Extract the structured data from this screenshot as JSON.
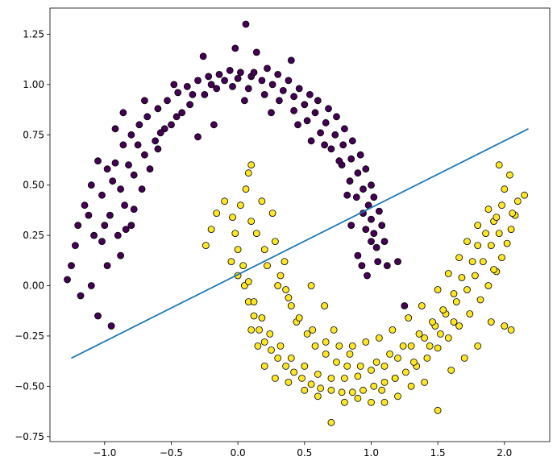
{
  "chart_data": {
    "type": "scatter",
    "title": "",
    "xlabel": "",
    "ylabel": "",
    "xlim": [
      -1.41,
      2.34
    ],
    "ylim": [
      -0.775,
      1.38
    ],
    "grid": false,
    "x_ticks": [
      -1.0,
      -0.5,
      0.0,
      0.5,
      1.0,
      1.5,
      2.0
    ],
    "x_tick_labels": [
      "−1.0",
      "−0.5",
      "0.0",
      "0.5",
      "1.0",
      "1.5",
      "2.0"
    ],
    "y_ticks": [
      -0.75,
      -0.5,
      -0.25,
      0.0,
      0.25,
      0.5,
      0.75,
      1.0,
      1.25
    ],
    "y_tick_labels": [
      "−0.75",
      "−0.50",
      "−0.25",
      "0.00",
      "0.25",
      "0.50",
      "0.75",
      "1.00",
      "1.25"
    ],
    "colors": {
      "class_0": "#440154",
      "class_1": "#fde725",
      "line": "#1f77b4",
      "point_edge": "#000000"
    },
    "series": [
      {
        "class": 0,
        "points": [
          [
            -1.05,
            0.62
          ],
          [
            -0.98,
            0.58
          ],
          [
            -0.92,
            0.61
          ],
          [
            -0.86,
            0.7
          ],
          [
            -0.8,
            0.75
          ],
          [
            -0.74,
            0.8
          ],
          [
            -0.68,
            0.84
          ],
          [
            -0.6,
            0.88
          ],
          [
            -0.53,
            0.92
          ],
          [
            -0.45,
            0.96
          ],
          [
            -0.38,
            0.99
          ],
          [
            -0.3,
            1.02
          ],
          [
            -0.22,
            1.04
          ],
          [
            -0.14,
            1.05
          ],
          [
            -0.06,
            1.07
          ],
          [
            0.02,
            1.06
          ],
          [
            0.1,
            1.04
          ],
          [
            0.18,
            1.02
          ],
          [
            0.26,
            1.0
          ],
          [
            0.34,
            0.97
          ],
          [
            0.42,
            0.94
          ],
          [
            0.5,
            0.9
          ],
          [
            0.58,
            0.86
          ],
          [
            0.66,
            0.81
          ],
          [
            0.73,
            0.75
          ],
          [
            0.79,
            0.7
          ],
          [
            0.85,
            0.63
          ],
          [
            0.9,
            0.56
          ],
          [
            0.94,
            0.48
          ],
          [
            0.98,
            0.4
          ],
          [
            1.0,
            0.33
          ],
          [
            1.02,
            0.26
          ],
          [
            1.04,
            0.19
          ],
          [
            1.05,
            0.12
          ],
          [
            -1.1,
            0.5
          ],
          [
            -1.15,
            0.4
          ],
          [
            -1.2,
            0.3
          ],
          [
            -1.22,
            0.2
          ],
          [
            -1.25,
            0.1
          ],
          [
            -1.28,
            0.03
          ],
          [
            -1.18,
            -0.05
          ],
          [
            -1.05,
            -0.15
          ],
          [
            -0.95,
            -0.2
          ],
          [
            -0.98,
            0.1
          ],
          [
            -0.9,
            0.25
          ],
          [
            -0.85,
            0.4
          ],
          [
            -0.78,
            0.55
          ],
          [
            -0.7,
            0.65
          ],
          [
            -0.62,
            0.72
          ],
          [
            -0.55,
            0.78
          ],
          [
            -0.46,
            0.84
          ],
          [
            -0.36,
            0.9
          ],
          [
            -0.25,
            0.95
          ],
          [
            -0.16,
            0.98
          ],
          [
            -0.04,
            0.99
          ],
          [
            0.08,
            0.98
          ],
          [
            0.2,
            0.95
          ],
          [
            0.31,
            0.92
          ],
          [
            0.42,
            0.87
          ],
          [
            0.52,
            0.82
          ],
          [
            0.62,
            0.76
          ],
          [
            0.7,
            0.68
          ],
          [
            0.78,
            0.6
          ],
          [
            0.84,
            0.52
          ],
          [
            0.89,
            0.44
          ],
          [
            0.94,
            0.36
          ],
          [
            0.96,
            0.28
          ],
          [
            1.0,
            0.22
          ],
          [
            -0.02,
            1.18
          ],
          [
            0.06,
            1.3
          ],
          [
            -0.26,
            1.14
          ],
          [
            0.4,
            1.12
          ],
          [
            0.14,
            1.16
          ],
          [
            -0.48,
            1.0
          ],
          [
            -0.7,
            0.92
          ],
          [
            -0.86,
            0.86
          ],
          [
            -0.92,
            0.78
          ],
          [
            -0.88,
            0.48
          ],
          [
            -0.96,
            0.35
          ],
          [
            -1.0,
            0.3
          ],
          [
            -1.08,
            0.25
          ],
          [
            -1.12,
            0.35
          ],
          [
            -1.02,
            0.45
          ],
          [
            -0.94,
            0.52
          ],
          [
            -0.82,
            0.6
          ],
          [
            -0.75,
            0.7
          ],
          [
            -0.58,
            0.76
          ],
          [
            -0.5,
            0.8
          ],
          [
            -0.42,
            0.86
          ],
          [
            -0.34,
            0.95
          ],
          [
            -0.2,
            1.0
          ],
          [
            -0.1,
            1.02
          ],
          [
            0.0,
            1.03
          ],
          [
            0.12,
            1.06
          ],
          [
            0.22,
            1.08
          ],
          [
            0.3,
            1.05
          ],
          [
            0.38,
            1.02
          ],
          [
            0.46,
            0.98
          ],
          [
            0.54,
            0.95
          ],
          [
            0.6,
            0.92
          ],
          [
            0.68,
            0.88
          ],
          [
            0.74,
            0.84
          ],
          [
            0.8,
            0.78
          ],
          [
            0.86,
            0.72
          ],
          [
            0.92,
            0.65
          ],
          [
            0.96,
            0.58
          ],
          [
            1.0,
            0.5
          ],
          [
            1.02,
            0.44
          ],
          [
            1.06,
            0.37
          ],
          [
            1.08,
            0.3
          ],
          [
            1.1,
            0.22
          ],
          [
            1.12,
            0.1
          ],
          [
            1.2,
            0.12
          ],
          [
            1.25,
            -0.1
          ],
          [
            0.85,
            0.3
          ],
          [
            0.9,
            0.15
          ],
          [
            0.93,
            0.1
          ],
          [
            0.97,
            0.05
          ],
          [
            -0.6,
            0.68
          ],
          [
            -0.66,
            0.58
          ],
          [
            -0.72,
            0.48
          ],
          [
            -0.78,
            0.38
          ],
          [
            -0.84,
            0.28
          ],
          [
            -1.02,
            0.22
          ],
          [
            -1.1,
            0.0
          ],
          [
            -0.88,
            0.15
          ],
          [
            -0.8,
            0.3
          ],
          [
            -0.3,
            0.74
          ],
          [
            -0.18,
            0.8
          ],
          [
            0.05,
            0.92
          ],
          [
            0.25,
            0.86
          ],
          [
            0.45,
            0.8
          ],
          [
            0.55,
            0.72
          ],
          [
            0.65,
            0.7
          ],
          [
            0.76,
            0.62
          ],
          [
            0.82,
            0.45
          ]
        ]
      },
      {
        "class": 1,
        "points": [
          [
            -0.05,
            0.12
          ],
          [
            0.0,
            0.05
          ],
          [
            0.05,
            0.0
          ],
          [
            0.08,
            -0.08
          ],
          [
            0.12,
            -0.15
          ],
          [
            0.16,
            -0.22
          ],
          [
            0.2,
            -0.28
          ],
          [
            0.25,
            -0.32
          ],
          [
            0.3,
            -0.36
          ],
          [
            0.36,
            -0.4
          ],
          [
            0.42,
            -0.43
          ],
          [
            0.48,
            -0.46
          ],
          [
            0.55,
            -0.49
          ],
          [
            0.62,
            -0.51
          ],
          [
            0.7,
            -0.52
          ],
          [
            0.78,
            -0.53
          ],
          [
            0.86,
            -0.53
          ],
          [
            0.94,
            -0.52
          ],
          [
            1.02,
            -0.5
          ],
          [
            1.1,
            -0.48
          ],
          [
            1.18,
            -0.46
          ],
          [
            1.26,
            -0.43
          ],
          [
            1.34,
            -0.4
          ],
          [
            1.42,
            -0.36
          ],
          [
            1.5,
            -0.31
          ],
          [
            1.58,
            -0.26
          ],
          [
            1.66,
            -0.2
          ],
          [
            1.74,
            -0.14
          ],
          [
            1.82,
            -0.07
          ],
          [
            1.88,
            0.0
          ],
          [
            1.94,
            0.07
          ],
          [
            1.98,
            0.14
          ],
          [
            2.02,
            0.21
          ],
          [
            2.05,
            0.28
          ],
          [
            2.08,
            0.35
          ],
          [
            2.1,
            0.42
          ],
          [
            2.15,
            0.45
          ],
          [
            1.98,
            0.4
          ],
          [
            1.92,
            0.32
          ],
          [
            1.96,
            0.26
          ],
          [
            1.9,
            0.2
          ],
          [
            1.84,
            0.12
          ],
          [
            1.78,
            0.05
          ],
          [
            1.72,
            -0.02
          ],
          [
            1.64,
            -0.08
          ],
          [
            1.56,
            -0.14
          ],
          [
            1.48,
            -0.2
          ],
          [
            1.4,
            -0.26
          ],
          [
            1.3,
            -0.3
          ],
          [
            1.2,
            -0.36
          ],
          [
            1.1,
            -0.4
          ],
          [
            1.0,
            -0.42
          ],
          [
            0.9,
            -0.45
          ],
          [
            0.8,
            -0.46
          ],
          [
            0.7,
            -0.46
          ],
          [
            0.6,
            -0.44
          ],
          [
            0.5,
            -0.4
          ],
          [
            0.4,
            -0.36
          ],
          [
            0.32,
            -0.3
          ],
          [
            0.24,
            -0.24
          ],
          [
            0.18,
            -0.16
          ],
          [
            0.12,
            -0.08
          ],
          [
            0.08,
            0.02
          ],
          [
            0.04,
            0.1
          ],
          [
            0.0,
            0.18
          ],
          [
            -0.02,
            0.26
          ],
          [
            -0.04,
            0.34
          ],
          [
            -0.1,
            0.42
          ],
          [
            -0.16,
            0.36
          ],
          [
            -0.2,
            0.28
          ],
          [
            -0.24,
            0.2
          ],
          [
            0.02,
            0.4
          ],
          [
            0.06,
            0.48
          ],
          [
            0.08,
            0.56
          ],
          [
            0.1,
            0.6
          ],
          [
            0.18,
            0.42
          ],
          [
            0.26,
            0.36
          ],
          [
            0.28,
            0.22
          ],
          [
            0.22,
            0.1
          ],
          [
            0.32,
            0.05
          ],
          [
            0.36,
            -0.02
          ],
          [
            0.4,
            -0.1
          ],
          [
            0.44,
            -0.18
          ],
          [
            0.52,
            -0.24
          ],
          [
            0.58,
            -0.3
          ],
          [
            0.66,
            -0.34
          ],
          [
            0.74,
            -0.38
          ],
          [
            0.82,
            -0.4
          ],
          [
            0.92,
            -0.4
          ],
          [
            1.04,
            -0.38
          ],
          [
            1.14,
            -0.34
          ],
          [
            1.24,
            -0.3
          ],
          [
            1.36,
            -0.24
          ],
          [
            1.46,
            -0.18
          ],
          [
            1.54,
            -0.12
          ],
          [
            1.62,
            -0.04
          ],
          [
            1.68,
            0.04
          ],
          [
            1.76,
            0.12
          ],
          [
            1.8,
            0.2
          ],
          [
            1.86,
            0.26
          ],
          [
            1.94,
            0.34
          ],
          [
            2.0,
            0.48
          ],
          [
            2.04,
            0.55
          ],
          [
            1.96,
            0.6
          ],
          [
            1.88,
            0.38
          ],
          [
            1.8,
            0.3
          ],
          [
            1.72,
            0.22
          ],
          [
            1.66,
            0.14
          ],
          [
            1.58,
            0.06
          ],
          [
            1.5,
            -0.02
          ],
          [
            1.38,
            -0.1
          ],
          [
            1.28,
            -0.16
          ],
          [
            1.16,
            -0.22
          ],
          [
            1.06,
            -0.26
          ],
          [
            0.96,
            -0.28
          ],
          [
            0.86,
            -0.3
          ],
          [
            0.76,
            -0.3
          ],
          [
            0.66,
            -0.28
          ],
          [
            0.56,
            -0.22
          ],
          [
            0.46,
            -0.16
          ],
          [
            0.38,
            -0.06
          ],
          [
            0.3,
            0.0
          ],
          [
            0.2,
            0.18
          ],
          [
            0.14,
            0.26
          ],
          [
            0.1,
            0.32
          ],
          [
            0.7,
            -0.68
          ],
          [
            0.8,
            -0.58
          ],
          [
            0.9,
            -0.56
          ],
          [
            1.0,
            -0.58
          ],
          [
            1.1,
            -0.58
          ],
          [
            1.2,
            -0.55
          ],
          [
            1.3,
            -0.5
          ],
          [
            1.4,
            -0.48
          ],
          [
            1.5,
            -0.62
          ],
          [
            1.6,
            -0.42
          ],
          [
            1.7,
            -0.36
          ],
          [
            1.8,
            -0.3
          ],
          [
            1.9,
            -0.18
          ],
          [
            2.0,
            -0.2
          ],
          [
            2.05,
            -0.22
          ],
          [
            0.6,
            -0.55
          ],
          [
            0.5,
            -0.52
          ],
          [
            0.38,
            -0.48
          ],
          [
            0.28,
            -0.46
          ],
          [
            0.2,
            -0.4
          ],
          [
            0.15,
            -0.3
          ],
          [
            0.1,
            -0.22
          ],
          [
            0.35,
            0.12
          ],
          [
            0.55,
            0.0
          ],
          [
            0.65,
            -0.1
          ],
          [
            0.72,
            -0.22
          ],
          [
            0.84,
            -0.34
          ],
          [
            1.08,
            -0.52
          ],
          [
            1.18,
            -0.46
          ],
          [
            1.32,
            -0.38
          ],
          [
            1.44,
            -0.3
          ],
          [
            1.52,
            -0.24
          ],
          [
            1.62,
            -0.18
          ],
          [
            1.92,
            0.08
          ],
          [
            2.06,
            0.36
          ]
        ]
      }
    ],
    "line": {
      "x": [
        -1.25,
        2.18
      ],
      "y": [
        -0.36,
        0.78
      ]
    }
  }
}
